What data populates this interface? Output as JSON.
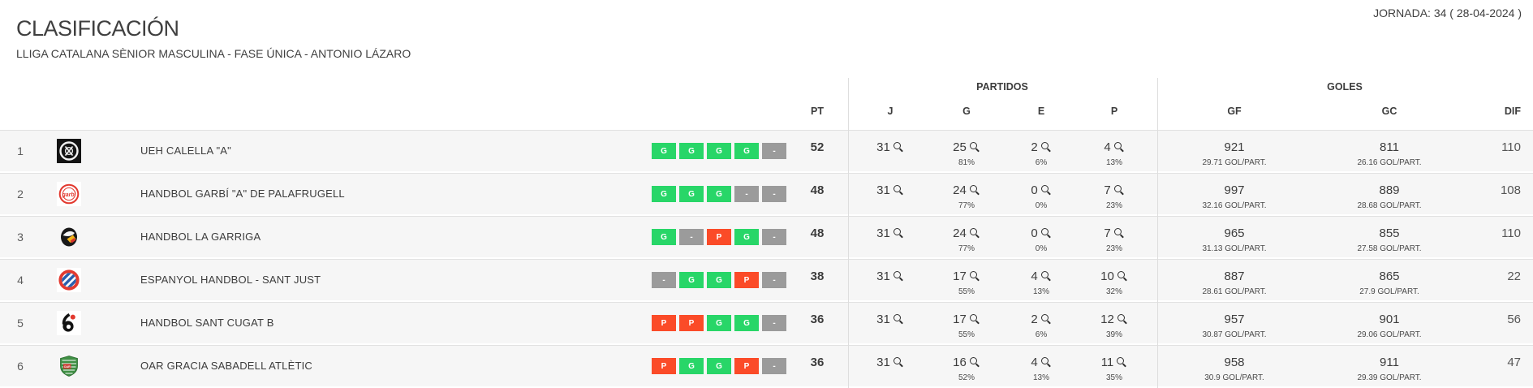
{
  "header": {
    "title": "CLASIFICACIÓN",
    "subtitle": "LLIGA CATALANA SÈNIOR MASCULINA - FASE ÚNICA - ANTONIO LÁZARO",
    "jornada": "JORNADA: 34 ( 28-04-2024 )"
  },
  "table": {
    "group_headers": {
      "partidos": "PARTIDOS",
      "goles": "GOLES"
    },
    "columns": {
      "pt": "PT",
      "j": "J",
      "g": "G",
      "e": "E",
      "p": "P",
      "gf": "GF",
      "gc": "GC",
      "dif": "DIF"
    },
    "rows": [
      {
        "pos": "1",
        "team": "UEH CALELLA \"A\"",
        "logo": "calella",
        "form": [
          "G",
          "G",
          "G",
          "G",
          "-"
        ],
        "pt": "52",
        "j": "31",
        "g": "25",
        "g_pct": "81%",
        "e": "2",
        "e_pct": "6%",
        "p": "4",
        "p_pct": "13%",
        "gf": "921",
        "gf_avg": "29.71 GOL/PART.",
        "gc": "811",
        "gc_avg": "26.16 GOL/PART.",
        "dif": "110"
      },
      {
        "pos": "2",
        "team": "HANDBOL GARBÍ \"A\" DE PALAFRUGELL",
        "logo": "garbi",
        "form": [
          "G",
          "G",
          "G",
          "-",
          "-"
        ],
        "pt": "48",
        "j": "31",
        "g": "24",
        "g_pct": "77%",
        "e": "0",
        "e_pct": "0%",
        "p": "7",
        "p_pct": "23%",
        "gf": "997",
        "gf_avg": "32.16 GOL/PART.",
        "gc": "889",
        "gc_avg": "28.68 GOL/PART.",
        "dif": "108"
      },
      {
        "pos": "3",
        "team": "HANDBOL LA GARRIGA",
        "logo": "garriga",
        "form": [
          "G",
          "-",
          "P",
          "G",
          "-"
        ],
        "pt": "48",
        "j": "31",
        "g": "24",
        "g_pct": "77%",
        "e": "0",
        "e_pct": "0%",
        "p": "7",
        "p_pct": "23%",
        "gf": "965",
        "gf_avg": "31.13 GOL/PART.",
        "gc": "855",
        "gc_avg": "27.58 GOL/PART.",
        "dif": "110"
      },
      {
        "pos": "4",
        "team": "ESPANYOL HANDBOL - SANT JUST",
        "logo": "espanyol",
        "form": [
          "-",
          "G",
          "G",
          "P",
          "-"
        ],
        "pt": "38",
        "j": "31",
        "g": "17",
        "g_pct": "55%",
        "e": "4",
        "e_pct": "13%",
        "p": "10",
        "p_pct": "32%",
        "gf": "887",
        "gf_avg": "28.61 GOL/PART.",
        "gc": "865",
        "gc_avg": "27.9 GOL/PART.",
        "dif": "22"
      },
      {
        "pos": "5",
        "team": "HANDBOL SANT CUGAT B",
        "logo": "santcugat",
        "form": [
          "P",
          "P",
          "G",
          "G",
          "-"
        ],
        "pt": "36",
        "j": "31",
        "g": "17",
        "g_pct": "55%",
        "e": "2",
        "e_pct": "6%",
        "p": "12",
        "p_pct": "39%",
        "gf": "957",
        "gf_avg": "30.87 GOL/PART.",
        "gc": "901",
        "gc_avg": "29.06 GOL/PART.",
        "dif": "56"
      },
      {
        "pos": "6",
        "team": "OAR GRACIA SABADELL ATLÈTIC",
        "logo": "oar",
        "form": [
          "P",
          "G",
          "G",
          "P",
          "-"
        ],
        "pt": "36",
        "j": "31",
        "g": "16",
        "g_pct": "52%",
        "e": "4",
        "e_pct": "13%",
        "p": "11",
        "p_pct": "35%",
        "gf": "958",
        "gf_avg": "30.9 GOL/PART.",
        "gc": "911",
        "gc_avg": "29.39 GOL/PART.",
        "dif": "47"
      }
    ]
  },
  "colors": {
    "win": "#28d668",
    "loss": "#fb4b28",
    "draw": "#9b9b9b"
  }
}
